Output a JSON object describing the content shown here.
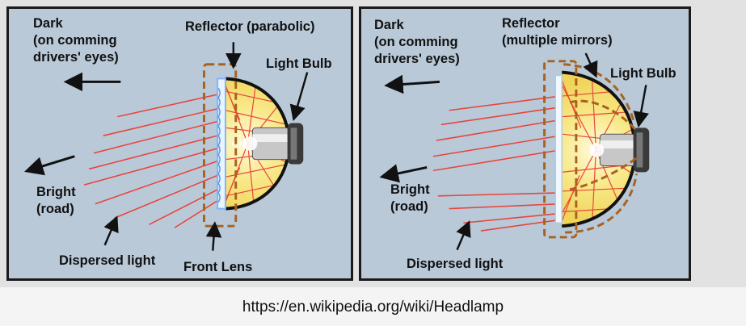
{
  "left_panel": {
    "dark_label": "Dark\n(on comming\ndrivers' eyes)",
    "reflector_label": "Reflector (parabolic)",
    "bulb_label": "Light Bulb",
    "bright_label": "Bright\n(road)",
    "dispersed_label": "Dispersed light",
    "lens_label": "Front Lens"
  },
  "right_panel": {
    "dark_label": "Dark\n(on comming\ndrivers' eyes)",
    "reflector_label": "Reflector\n(multiple mirrors)",
    "bulb_label": "Light Bulb",
    "bright_label": "Bright\n(road)",
    "dispersed_label": "Dispersed light"
  },
  "caption": "https://en.wikipedia.org/wiki/Headlamp",
  "colors": {
    "panel_bg": "#b9c9d8",
    "ray": "#e8453c",
    "reflector_fill": "#f6e67a",
    "dashed_outline": "#a8621f"
  }
}
